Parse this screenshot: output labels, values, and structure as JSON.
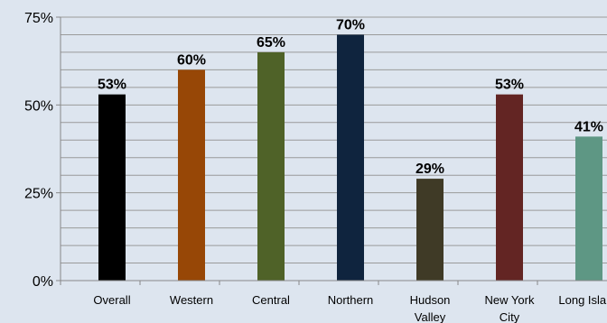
{
  "chart_data": {
    "type": "bar",
    "title": "",
    "xlabel": "",
    "ylabel": "",
    "ylim": [
      0,
      75
    ],
    "yticks": [
      0,
      25,
      50,
      75
    ],
    "ytick_labels": [
      "0%",
      "25%",
      "50%",
      "75%"
    ],
    "grid": true,
    "categories": [
      [
        "Overall"
      ],
      [
        "Western"
      ],
      [
        "Central"
      ],
      [
        "Northern"
      ],
      [
        "Hudson",
        "Valley"
      ],
      [
        "New York",
        "City"
      ],
      [
        "Long Island"
      ]
    ],
    "values": [
      53,
      60,
      65,
      70,
      29,
      53,
      41
    ],
    "data_labels": [
      "53%",
      "60%",
      "65%",
      "70%",
      "29%",
      "53%",
      "41%"
    ],
    "colors": [
      "#000000",
      "#974706",
      "#4f6228",
      "#0f243e",
      "#3f3a26",
      "#632523",
      "#5e9784"
    ]
  }
}
